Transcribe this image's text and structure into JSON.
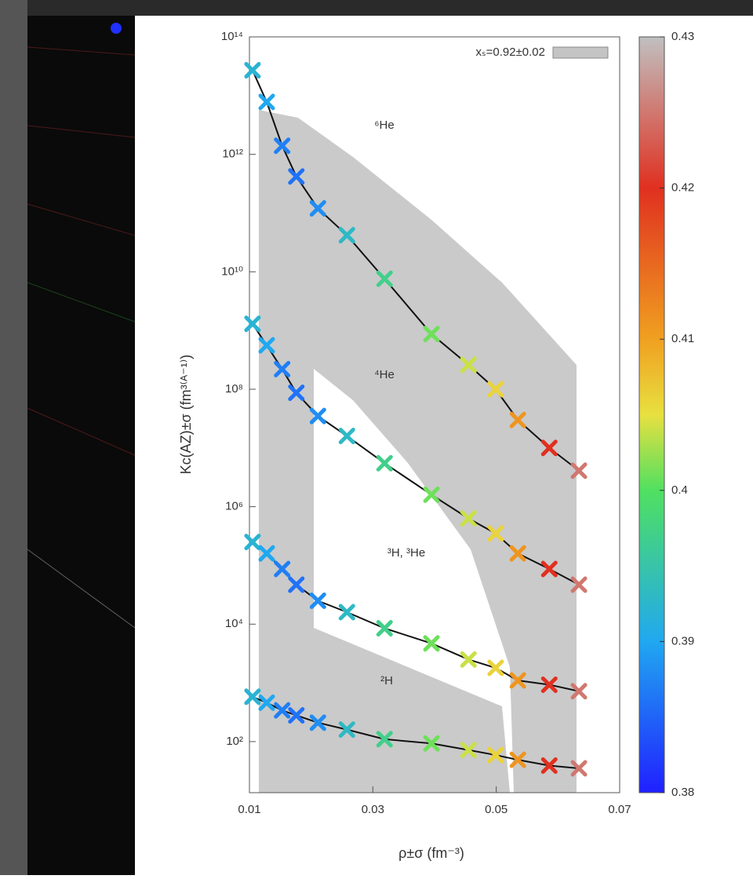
{
  "chart_data": {
    "type": "scatter",
    "xlabel": "ρ±σ (fm⁻³)",
    "ylabel": "Kc(AZ)±σ (fm³⁽ᴬ⁻¹⁾)",
    "legend_label": "xₛ=0.92±0.02",
    "log_y": true,
    "line_color": "#111111",
    "band_color": "#c4c4c4",
    "x": [
      0.0105,
      0.0128,
      0.0153,
      0.0176,
      0.0211,
      0.0258,
      0.0319,
      0.0395,
      0.0455,
      0.0499,
      0.0535,
      0.0586,
      0.0634
    ],
    "color_values": [
      0.392,
      0.39,
      0.387,
      0.386,
      0.388,
      0.393,
      0.397,
      0.401,
      0.404,
      0.406,
      0.411,
      0.42,
      0.425
    ],
    "series": [
      {
        "name": "⁶He",
        "values": [
          27000000000000.0,
          7800000000000.0,
          1400000000000.0,
          420000000000.0,
          120000000000.0,
          42000000000.0,
          7600000000.0,
          870000000.0,
          260000000.0,
          100000000.0,
          30000000.0,
          10000000.0,
          4100000.0
        ]
      },
      {
        "name": "⁴He",
        "values": [
          1300000000.0,
          560000000.0,
          220000000.0,
          87000000.0,
          35000000.0,
          16000000.0,
          5500000.0,
          1600000.0,
          630000.0,
          350000.0,
          160000.0,
          87000.0,
          47000.0
        ]
      },
      {
        "name": "³H, ³He",
        "values": [
          250000.0,
          160000.0,
          87000.0,
          47000.0,
          25000.0,
          16000.0,
          8500,
          4700,
          2500,
          1800,
          1100,
          930,
          720
        ]
      },
      {
        "name": "²H",
        "values": [
          580,
          460,
          340,
          280,
          210,
          160,
          110,
          93,
          72,
          59,
          49,
          39,
          35
        ]
      }
    ],
    "xlim": [
      0.01,
      0.07
    ],
    "xticks": [
      0.01,
      0.03,
      0.05,
      0.07
    ],
    "ylim": [
      13.5,
      100000000000000.0
    ],
    "yticks": [
      {
        "value": 100,
        "label": "10²"
      },
      {
        "value": 10000,
        "label": "10⁴"
      },
      {
        "value": 1000000,
        "label": "10⁶"
      },
      {
        "value": 100000000,
        "label": "10⁸"
      },
      {
        "value": 10000000000,
        "label": "10¹⁰"
      },
      {
        "value": 1000000000000,
        "label": "10¹²"
      },
      {
        "value": 100000000000000,
        "label": "10¹⁴"
      }
    ],
    "clim": [
      0.38,
      0.43
    ],
    "cticks": [
      0.38,
      0.39,
      0.4,
      0.41,
      0.42,
      0.43
    ]
  }
}
